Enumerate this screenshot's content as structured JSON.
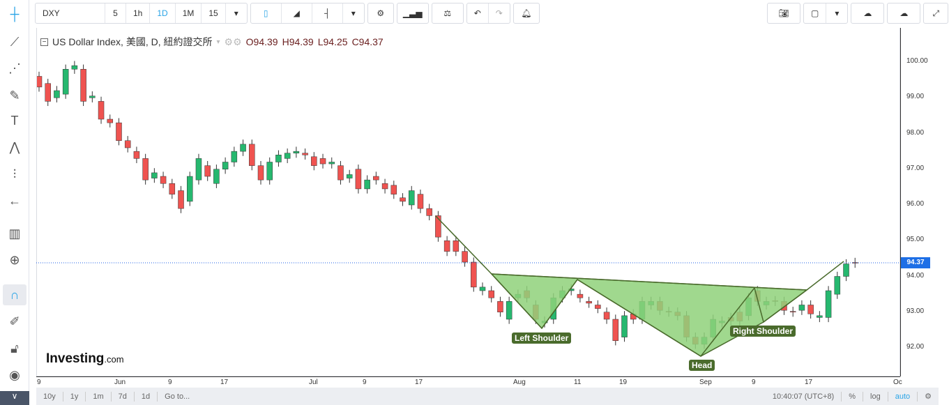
{
  "toolbar": {
    "symbol": "DXY",
    "intervals": [
      "5",
      "1h",
      "1D",
      "1M",
      "15"
    ],
    "selected_interval": "1D"
  },
  "legend": {
    "title": "US Dollar Index, 美國, D, 紐約證交所",
    "open": "O94.39",
    "high": "H94.39",
    "low": "L94.25",
    "close": "C94.37"
  },
  "price_axis": {
    "labels": [
      "100.00",
      "99.00",
      "98.00",
      "97.00",
      "96.00",
      "95.00",
      "94.00",
      "93.00",
      "92.00"
    ],
    "current_price": "94.37"
  },
  "time_axis": {
    "labels": [
      "9",
      "Jun",
      "9",
      "17",
      "Jul",
      "9",
      "17",
      "Aug",
      "11",
      "19",
      "Sep",
      "9",
      "17",
      "Oc"
    ]
  },
  "pattern": {
    "left_shoulder": "Left Shoulder",
    "head": "Head",
    "right_shoulder": "Right Shoulder"
  },
  "logo": {
    "brand": "Investing",
    "suffix": ".com"
  },
  "bottom": {
    "ranges": [
      "10y",
      "1y",
      "1m",
      "7d",
      "1d"
    ],
    "goto": "Go to...",
    "time": "10:40:07 (UTC+8)",
    "percent": "%",
    "log": "log",
    "auto": "auto"
  },
  "colors": {
    "up": "#26b86f",
    "down": "#ef5350",
    "pattern_fill": "#8fd17a",
    "pattern_line": "#4a6b2c",
    "accent": "#2aa4e6"
  },
  "chart_data": {
    "type": "candlestick",
    "ylim": [
      91.8,
      100.4
    ],
    "candles": [
      [
        99.6,
        99.3
      ],
      [
        99.4,
        98.9
      ],
      [
        99.0,
        99.2
      ],
      [
        99.1,
        99.8
      ],
      [
        99.8,
        99.9
      ],
      [
        99.8,
        98.9
      ],
      [
        99.0,
        99.05
      ],
      [
        98.9,
        98.4
      ],
      [
        98.4,
        98.3
      ],
      [
        98.3,
        97.8
      ],
      [
        97.8,
        97.6
      ],
      [
        97.5,
        97.3
      ],
      [
        97.3,
        96.7
      ],
      [
        96.75,
        96.9
      ],
      [
        96.8,
        96.6
      ],
      [
        96.6,
        96.3
      ],
      [
        96.4,
        95.9
      ],
      [
        96.1,
        96.8
      ],
      [
        96.7,
        97.3
      ],
      [
        97.1,
        96.8
      ],
      [
        96.6,
        97.0
      ],
      [
        97.0,
        97.2
      ],
      [
        97.2,
        97.5
      ],
      [
        97.5,
        97.7
      ],
      [
        97.7,
        97.1
      ],
      [
        97.1,
        96.7
      ],
      [
        96.7,
        97.2
      ],
      [
        97.2,
        97.4
      ],
      [
        97.3,
        97.45
      ],
      [
        97.45,
        97.5
      ],
      [
        97.45,
        97.4
      ],
      [
        97.35,
        97.1
      ],
      [
        97.3,
        97.15
      ],
      [
        97.15,
        97.2
      ],
      [
        97.1,
        96.7
      ],
      [
        96.75,
        96.85
      ],
      [
        97.0,
        96.45
      ],
      [
        96.45,
        96.7
      ],
      [
        96.8,
        96.7
      ],
      [
        96.6,
        96.45
      ],
      [
        96.55,
        96.3
      ],
      [
        96.2,
        96.1
      ],
      [
        96.0,
        96.4
      ],
      [
        96.3,
        95.9
      ],
      [
        95.9,
        95.7
      ],
      [
        95.7,
        95.1
      ],
      [
        95.0,
        94.7
      ],
      [
        95.0,
        94.7
      ],
      [
        94.7,
        94.4
      ],
      [
        94.4,
        93.7
      ],
      [
        93.6,
        93.7
      ],
      [
        93.6,
        93.4
      ],
      [
        93.3,
        93.0
      ],
      [
        92.8,
        93.3
      ],
      [
        93.4,
        93.5
      ],
      [
        93.6,
        93.4
      ],
      [
        93.2,
        92.8
      ],
      [
        92.7,
        92.75
      ],
      [
        92.8,
        93.4
      ],
      [
        93.4,
        93.6
      ],
      [
        93.6,
        93.65
      ],
      [
        93.5,
        93.4
      ],
      [
        93.3,
        93.25
      ],
      [
        93.2,
        93.1
      ],
      [
        93.0,
        92.8
      ],
      [
        92.8,
        92.2
      ],
      [
        92.3,
        92.9
      ],
      [
        92.95,
        92.8
      ],
      [
        92.8,
        93.3
      ],
      [
        93.2,
        93.3
      ],
      [
        93.3,
        93.05
      ],
      [
        93.02,
        93.0
      ],
      [
        93.0,
        92.9
      ],
      [
        92.9,
        92.3
      ],
      [
        92.3,
        92.1
      ],
      [
        92.1,
        92.3
      ],
      [
        92.3,
        92.8
      ],
      [
        92.7,
        92.75
      ],
      [
        92.85,
        92.75
      ],
      [
        93.0,
        92.75
      ],
      [
        92.9,
        93.4
      ],
      [
        93.6,
        93.3
      ],
      [
        93.2,
        93.3
      ],
      [
        93.32,
        93.3
      ],
      [
        93.3,
        93.05
      ],
      [
        93.02,
        93.0
      ],
      [
        93.05,
        93.2
      ],
      [
        93.2,
        92.95
      ],
      [
        92.85,
        92.9
      ],
      [
        92.85,
        93.6
      ],
      [
        93.5,
        94.0
      ],
      [
        94.0,
        94.35
      ],
      [
        94.39,
        94.37
      ]
    ]
  }
}
